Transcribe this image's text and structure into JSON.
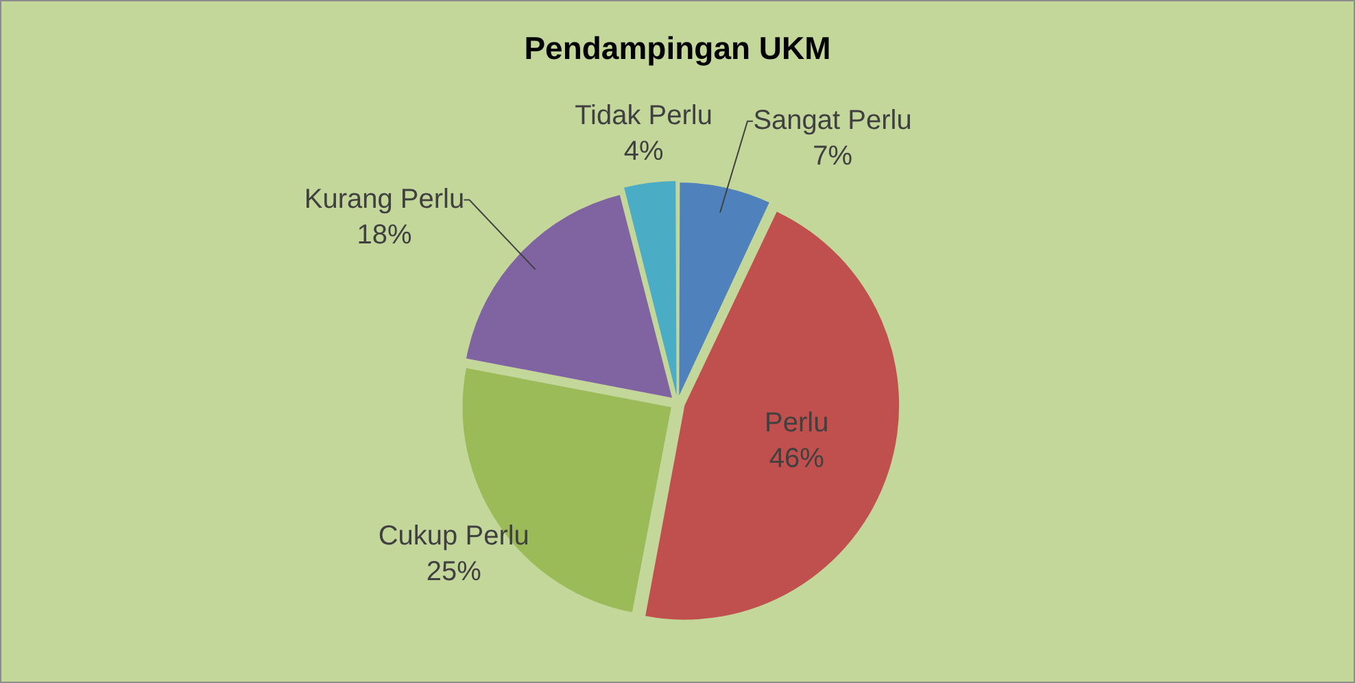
{
  "chart_data": {
    "type": "pie",
    "title": "Pendampingan UKM",
    "categories": [
      "Sangat Perlu",
      "Perlu",
      "Cukup Perlu",
      "Kurang Perlu",
      "Tidak Perlu"
    ],
    "values": [
      7,
      46,
      25,
      18,
      4
    ],
    "colors": [
      "#4f81bd",
      "#c0504d",
      "#9bbb59",
      "#8064a2",
      "#4bacc6"
    ],
    "value_labels": [
      "7%",
      "46%",
      "25%",
      "18%",
      "4%"
    ],
    "legend": false
  }
}
